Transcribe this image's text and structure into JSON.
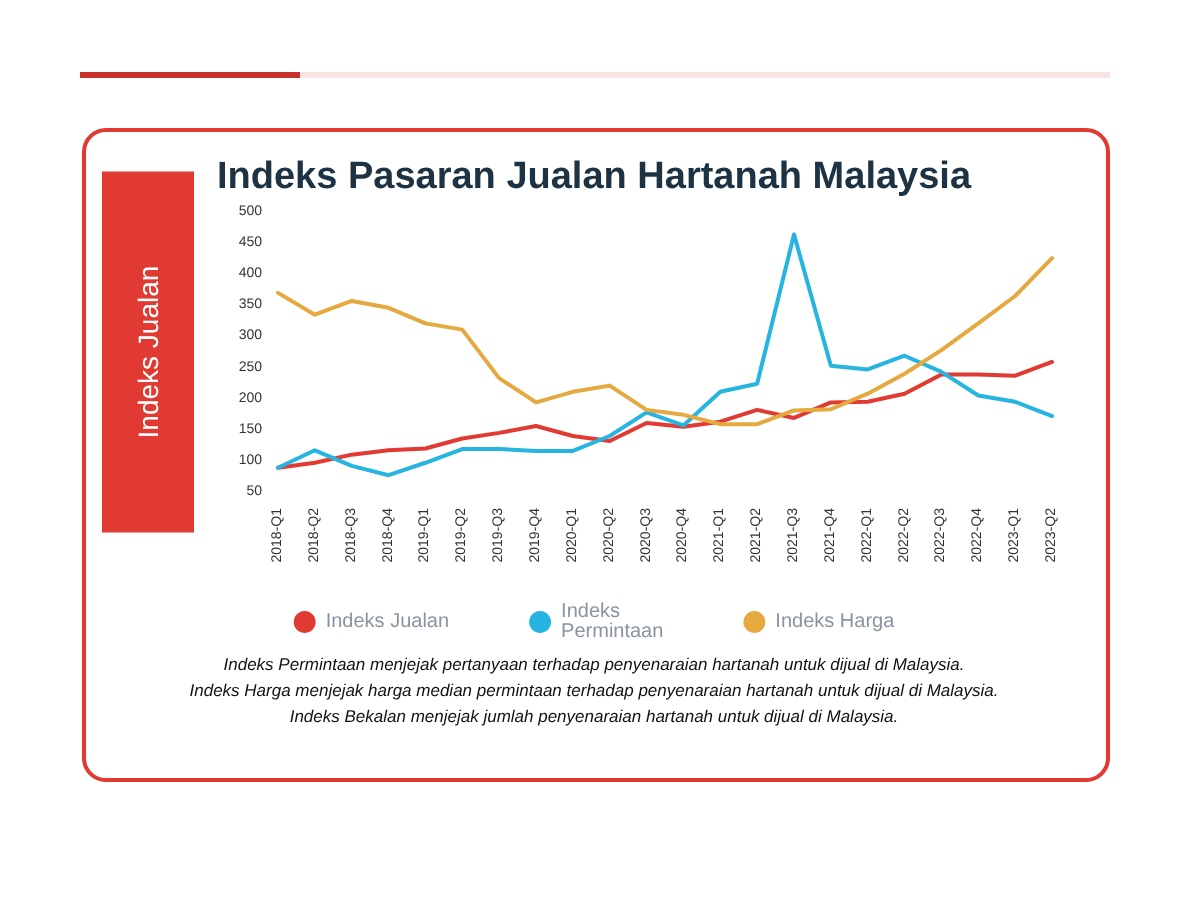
{
  "chart_data": {
    "type": "line",
    "title": "Indeks Pasaran Jualan Hartanah Malaysia",
    "ylabel": "Indeks Jualan",
    "categories": [
      "2018-Q1",
      "2018-Q2",
      "2018-Q3",
      "2018-Q4",
      "2019-Q1",
      "2019-Q2",
      "2019-Q3",
      "2019-Q4",
      "2020-Q1",
      "2020-Q2",
      "2020-Q3",
      "2020-Q4",
      "2021-Q1",
      "2021-Q2",
      "2021-Q3",
      "2021-Q4",
      "2022-Q1",
      "2022-Q2",
      "2022-Q3",
      "2022-Q4",
      "2023-Q1",
      "2023-Q2"
    ],
    "series": [
      {
        "name": "Indeks Jualan",
        "color": "#e03a33",
        "values": [
          89,
          97,
          110,
          117,
          120,
          136,
          145,
          156,
          140,
          132,
          161,
          155,
          163,
          182,
          169,
          194,
          195,
          208,
          239,
          239,
          237,
          259
        ]
      },
      {
        "name": "Indeks Permintaan",
        "color": "#25b5e0",
        "values": [
          89,
          117,
          92,
          77,
          97,
          119,
          119,
          116,
          116,
          140,
          178,
          157,
          211,
          224,
          464,
          253,
          247,
          269,
          243,
          205,
          195,
          172
        ]
      },
      {
        "name": "Indeks Harga",
        "color": "#e5a940",
        "values": [
          370,
          335,
          357,
          346,
          321,
          311,
          233,
          194,
          211,
          221,
          182,
          174,
          159,
          159,
          181,
          183,
          208,
          240,
          278,
          321,
          365,
          426
        ]
      }
    ],
    "ylim": [
      50,
      500
    ],
    "yticks": [
      50,
      100,
      150,
      200,
      250,
      300,
      350,
      400,
      450,
      500
    ],
    "grid": false,
    "legend": "bottom",
    "marker": "none",
    "line_style": "solid",
    "annotations": [
      "Indeks Permintaan menjejak pertanyaan terhadap penyenaraian hartanah untuk dijual di Malaysia.",
      "Indeks Harga menjejak harga median permintaan terhadap penyenaraian hartanah untuk dijual di Malaysia.",
      "Indeks Bekalan menjejak jumlah penyenaraian hartanah untuk dijual di Malaysia."
    ]
  }
}
